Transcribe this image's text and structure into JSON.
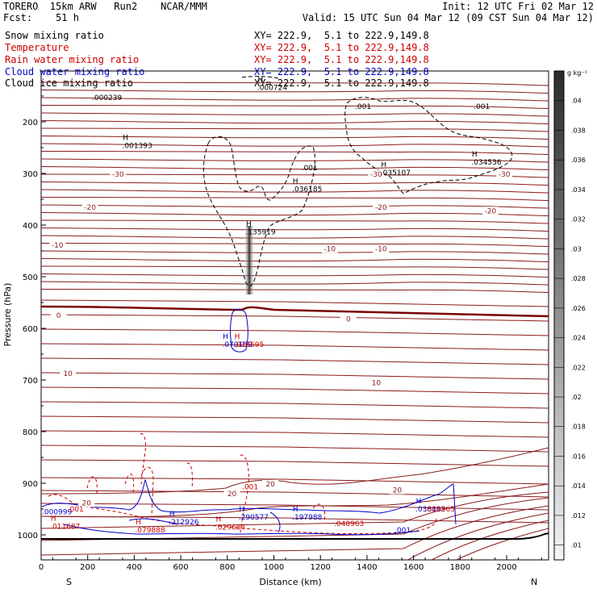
{
  "header": {
    "line1_left": "TORERO  15km ARW   Run2    NCAR/MMM",
    "line1_right": "Init: 12 UTC Fri 02 Mar 12",
    "line2_left": "Fcst:    51 h",
    "line2_right": "Valid: 15 UTC Sun 04 Mar 12 (09 CST Sun 04 Mar 12)"
  },
  "fields": [
    {
      "name": "Snow mixing ratio",
      "xy": "XY= 222.9,  5.1 to 222.9,149.8",
      "color": "#000000"
    },
    {
      "name": "Temperature",
      "xy": "XY= 222.9,  5.1 to 222.9,149.8",
      "color": "#cc0000"
    },
    {
      "name": "Rain water mixing ratio",
      "xy": "XY= 222.9,  5.1 to 222.9,149.8",
      "color": "#cc0000"
    },
    {
      "name": "Cloud water mixing ratio",
      "xy": "XY= 222.9,  5.1 to 222.9,149.8",
      "color": "#0000cc"
    },
    {
      "name": "Cloud ice mixing ratio",
      "xy": "XY= 222.9,  5.1 to 222.9,149.8",
      "color": "#000000"
    }
  ],
  "chart_data": {
    "type": "contour-cross-section",
    "xlabel": "Distance (km)",
    "ylabel": "Pressure (hPa)",
    "xlim": [
      0,
      2200
    ],
    "ylim": [
      1050,
      100
    ],
    "x_ticks": [
      "0",
      "200",
      "400",
      "600",
      "800",
      "1000",
      "1200",
      "1400",
      "1600",
      "1800",
      "2000"
    ],
    "x_tick_values": [
      0,
      200,
      400,
      600,
      800,
      1000,
      1200,
      1400,
      1600,
      1800,
      2000
    ],
    "y_ticks": [
      "200",
      "300",
      "400",
      "500",
      "600",
      "700",
      "800",
      "900",
      "1000"
    ],
    "y_tick_values": [
      200,
      300,
      400,
      500,
      600,
      700,
      800,
      900,
      1000
    ],
    "endpoints": {
      "left": "S",
      "right": "N"
    },
    "colorbar": {
      "unit": "g kg⁻¹",
      "labels": [
        ".01",
        ".012",
        ".014",
        ".016",
        ".018",
        ".02",
        ".022",
        ".024",
        ".026",
        ".028",
        ".03",
        ".032",
        ".034",
        ".036",
        ".038",
        ".04"
      ],
      "values": [
        0.01,
        0.012,
        0.014,
        0.016,
        0.018,
        0.02,
        0.022,
        0.024,
        0.026,
        0.028,
        0.03,
        0.032,
        0.034,
        0.036,
        0.038,
        0.04
      ]
    },
    "temperature_labels": [
      {
        "text": "-30",
        "x": 330,
        "p": 306
      },
      {
        "text": "-30",
        "x": 1440,
        "p": 306
      },
      {
        "text": "-30",
        "x": 1990,
        "p": 306
      },
      {
        "text": "-20",
        "x": 210,
        "p": 370
      },
      {
        "text": "-20",
        "x": 1460,
        "p": 370
      },
      {
        "text": "-20",
        "x": 1930,
        "p": 377
      },
      {
        "text": "-10",
        "x": 70,
        "p": 444
      },
      {
        "text": "-10",
        "x": 1240,
        "p": 451
      },
      {
        "text": "-10",
        "x": 1460,
        "p": 451
      },
      {
        "text": "0",
        "x": 75,
        "p": 580
      },
      {
        "text": "0",
        "x": 1320,
        "p": 587
      },
      {
        "text": "10",
        "x": 115,
        "p": 692
      },
      {
        "text": "10",
        "x": 1440,
        "p": 710
      },
      {
        "text": "20",
        "x": 985,
        "p": 906
      },
      {
        "text": "20",
        "x": 1530,
        "p": 918
      },
      {
        "text": "20",
        "x": 820,
        "p": 925
      },
      {
        "text": "20",
        "x": 195,
        "p": 943
      }
    ],
    "maxima": [
      {
        "text": ".000239",
        "x": 260,
        "p": 158,
        "color": "#000000",
        "h": false
      },
      {
        "text": ".000724",
        "x": 970,
        "p": 138,
        "color": "#000000",
        "h": true
      },
      {
        "text": ".001393",
        "x": 390,
        "p": 251,
        "color": "#000000",
        "h": true
      },
      {
        "text": ".001",
        "x": 1390,
        "p": 175,
        "color": "#000000",
        "h": false
      },
      {
        "text": ".001",
        "x": 1900,
        "p": 175,
        "color": "#000000",
        "h": false
      },
      {
        "text": ".001",
        "x": 1160,
        "p": 294,
        "color": "#000000",
        "h": false
      },
      {
        "text": ".035107",
        "x": 1500,
        "p": 303,
        "color": "#000000",
        "h": true
      },
      {
        "text": ".034536",
        "x": 1890,
        "p": 283,
        "color": "#000000",
        "h": true
      },
      {
        "text": ".036185",
        "x": 1120,
        "p": 335,
        "color": "#000000",
        "h": true
      },
      {
        "text": ".135919",
        "x": 920,
        "p": 418,
        "color": "#000000",
        "h": true
      },
      {
        "text": ".070159",
        "x": 820,
        "p": 636,
        "color": "#0000cc",
        "h": true
      },
      {
        "text": ".018595",
        "x": 870,
        "p": 636,
        "color": "#cc0000",
        "h": true
      },
      {
        "text": ".001",
        "x": 905,
        "p": 912,
        "color": "#cc0000",
        "h": false
      },
      {
        "text": ".000999",
        "x": 0,
        "p": 960,
        "color": "#0000cc",
        "h": false
      },
      {
        "text": ".011687",
        "x": 80,
        "p": 988,
        "color": "#cc0000",
        "h": true
      },
      {
        "text": ".001",
        "x": 155,
        "p": 955,
        "color": "#cc0000",
        "h": false
      },
      {
        "text": ".212926",
        "x": 590,
        "p": 980,
        "color": "#0000cc",
        "h": true
      },
      {
        "text": ".290577",
        "x": 890,
        "p": 970,
        "color": "#0000cc",
        "h": true
      },
      {
        "text": ".197988",
        "x": 1120,
        "p": 970,
        "color": "#0000cc",
        "h": true
      },
      {
        "text": ".079888",
        "x": 445,
        "p": 995,
        "color": "#cc0000",
        "h": true
      },
      {
        "text": ".029684",
        "x": 790,
        "p": 990,
        "color": "#cc0000",
        "h": true
      },
      {
        "text": ".048963",
        "x": 1300,
        "p": 983,
        "color": "#cc0000",
        "h": false
      },
      {
        "text": ".038493",
        "x": 1650,
        "p": 955,
        "color": "#0000cc",
        "h": true
      },
      {
        "text": ".036563",
        "x": 1690,
        "p": 955,
        "color": "#cc0000",
        "h": false
      },
      {
        "text": ".001",
        "x": 1560,
        "p": 995,
        "color": "#0000cc",
        "h": false
      }
    ]
  }
}
